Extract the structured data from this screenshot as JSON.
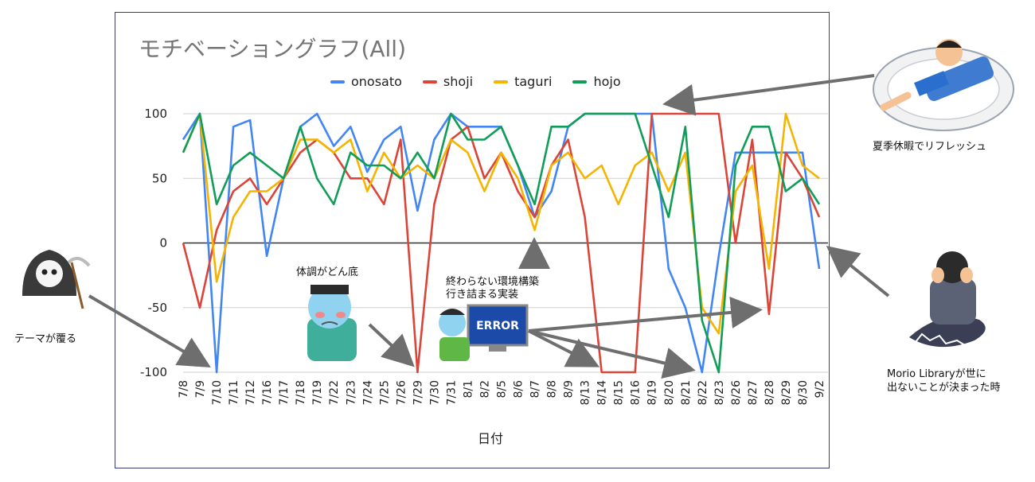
{
  "colors": {
    "onosato": "#4285f4",
    "shoji": "#db4437",
    "taguri": "#f4b400",
    "hojo": "#0f9d58",
    "arrow": "#6e6e6e",
    "grid": "#d0d0d0"
  },
  "annotations": {
    "vacation": "夏季休暇でリフレッシュ",
    "theme": "テーマが覆る",
    "health": "体調がどん底",
    "env_line1": "終わらない環境構築",
    "env_line2": "行き詰まる実装",
    "library_line1": "Morio Libraryが世に",
    "library_line2": "出ないことが決まった時",
    "error_sign": "ERROR"
  },
  "chart_data": {
    "type": "line",
    "title": "モチベーショングラフ(All)",
    "xlabel": "日付",
    "ylabel": "",
    "ylim": [
      -100,
      100
    ],
    "yticks": [
      100,
      50,
      0,
      -50,
      -100
    ],
    "grid": true,
    "legend_position": "top",
    "categories": [
      "7/8",
      "7/9",
      "7/10",
      "7/11",
      "7/12",
      "7/16",
      "7/17",
      "7/18",
      "7/19",
      "7/22",
      "7/23",
      "7/24",
      "7/25",
      "7/26",
      "7/29",
      "7/30",
      "7/31",
      "8/1",
      "8/2",
      "8/5",
      "8/6",
      "8/7",
      "8/8",
      "8/9",
      "8/13",
      "8/14",
      "8/15",
      "8/16",
      "8/19",
      "8/20",
      "8/21",
      "8/22",
      "8/23",
      "8/26",
      "8/27",
      "8/28",
      "8/29",
      "8/30",
      "9/2"
    ],
    "series": [
      {
        "name": "onosato",
        "values": [
          80,
          100,
          -100,
          90,
          95,
          -10,
          50,
          90,
          100,
          75,
          90,
          55,
          80,
          90,
          25,
          80,
          100,
          90,
          90,
          90,
          60,
          20,
          40,
          90,
          100,
          100,
          100,
          100,
          100,
          -20,
          -50,
          -100,
          -10,
          70,
          70,
          70,
          70,
          70,
          -20
        ]
      },
      {
        "name": "shoji",
        "values": [
          0,
          -50,
          10,
          40,
          50,
          30,
          50,
          70,
          80,
          70,
          50,
          50,
          30,
          80,
          -100,
          30,
          80,
          90,
          50,
          70,
          40,
          20,
          60,
          80,
          20,
          -100,
          -100,
          -100,
          100,
          100,
          100,
          100,
          100,
          0,
          80,
          -55,
          70,
          50,
          20
        ]
      },
      {
        "name": "taguri",
        "values": [
          70,
          100,
          -30,
          20,
          40,
          40,
          50,
          80,
          80,
          70,
          80,
          40,
          70,
          50,
          60,
          50,
          80,
          70,
          40,
          70,
          50,
          10,
          60,
          70,
          50,
          60,
          30,
          60,
          70,
          40,
          70,
          -50,
          -70,
          40,
          60,
          -20,
          100,
          60,
          50
        ]
      },
      {
        "name": "hojo",
        "values": [
          70,
          100,
          30,
          60,
          70,
          60,
          50,
          90,
          50,
          30,
          70,
          60,
          60,
          50,
          70,
          50,
          100,
          80,
          80,
          90,
          60,
          30,
          90,
          90,
          100,
          100,
          100,
          100,
          60,
          20,
          90,
          -60,
          -100,
          60,
          90,
          90,
          40,
          50,
          30
        ]
      }
    ]
  }
}
